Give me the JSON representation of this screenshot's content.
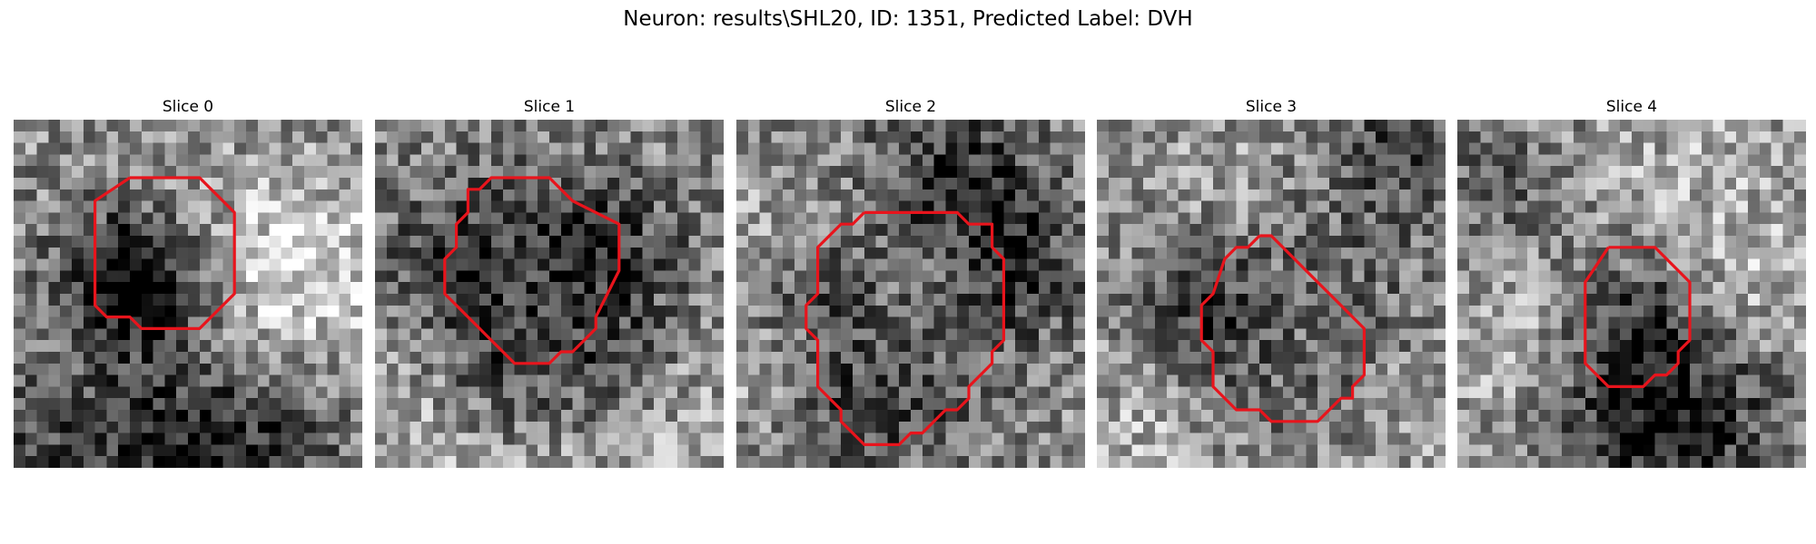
{
  "figure": {
    "title": "Neuron: results\\SHL20, ID: 1351, Predicted Label: DVH"
  },
  "colors": {
    "contour": "#e8141c",
    "gray_min": "#000000",
    "gray_max": "#ffffff"
  },
  "panels": [
    {
      "title": "Slice 0",
      "grid": 30,
      "contour_points": [
        [
          10,
          5
        ],
        [
          16,
          5
        ],
        [
          19,
          8
        ],
        [
          19,
          15
        ],
        [
          16,
          18
        ],
        [
          11,
          18
        ],
        [
          10,
          17
        ],
        [
          8,
          17
        ],
        [
          7,
          16
        ],
        [
          7,
          7
        ],
        [
          10,
          5
        ]
      ],
      "dark_blobs": [
        [
          8,
          13,
          4,
          1.4
        ],
        [
          12,
          14,
          4,
          1.2
        ],
        [
          14,
          29,
          7,
          1.0
        ],
        [
          19,
          27,
          7,
          1.0
        ],
        [
          2,
          27,
          5,
          0.7
        ]
      ],
      "light_blobs": [
        [
          22,
          12,
          6,
          1.0
        ],
        [
          28,
          12,
          4,
          0.6
        ],
        [
          21,
          20,
          6,
          0.7
        ]
      ],
      "seed": 11
    },
    {
      "title": "Slice 1",
      "grid": 30,
      "contour_points": [
        [
          11,
          5
        ],
        [
          15,
          5
        ],
        [
          17,
          7
        ],
        [
          19,
          8
        ],
        [
          21,
          9
        ],
        [
          21,
          13
        ],
        [
          20,
          15
        ],
        [
          19,
          17
        ],
        [
          19,
          18
        ],
        [
          18,
          19
        ],
        [
          17,
          20
        ],
        [
          16,
          20
        ],
        [
          15,
          21
        ],
        [
          12,
          21
        ],
        [
          10,
          19
        ],
        [
          9,
          18
        ],
        [
          8,
          17
        ],
        [
          7,
          16
        ],
        [
          6,
          15
        ],
        [
          6,
          12
        ],
        [
          7,
          11
        ],
        [
          7,
          9
        ],
        [
          8,
          8
        ],
        [
          8,
          6
        ],
        [
          9,
          6
        ],
        [
          10,
          5
        ],
        [
          11,
          5
        ]
      ],
      "dark_blobs": [
        [
          14,
          13,
          7,
          0.9
        ],
        [
          6,
          12,
          5,
          0.8
        ],
        [
          19,
          12,
          5,
          0.9
        ],
        [
          10,
          22,
          4,
          0.9
        ],
        [
          20,
          22,
          4,
          0.8
        ]
      ],
      "light_blobs": [
        [
          14,
          13,
          4,
          0.6
        ],
        [
          5,
          25,
          7,
          0.8
        ],
        [
          23,
          25,
          6,
          0.8
        ]
      ],
      "seed": 23
    },
    {
      "title": "Slice 2",
      "grid": 30,
      "contour_points": [
        [
          11,
          8
        ],
        [
          19,
          8
        ],
        [
          20,
          9
        ],
        [
          22,
          9
        ],
        [
          22,
          11
        ],
        [
          23,
          12
        ],
        [
          23,
          19
        ],
        [
          22,
          20
        ],
        [
          22,
          21
        ],
        [
          20,
          23
        ],
        [
          20,
          24
        ],
        [
          19,
          25
        ],
        [
          18,
          25
        ],
        [
          16,
          27
        ],
        [
          15,
          27
        ],
        [
          14,
          28
        ],
        [
          11,
          28
        ],
        [
          9,
          26
        ],
        [
          9,
          25
        ],
        [
          8,
          24
        ],
        [
          7,
          23
        ],
        [
          7,
          19
        ],
        [
          6,
          18
        ],
        [
          6,
          16
        ],
        [
          7,
          15
        ],
        [
          7,
          11
        ],
        [
          8,
          10
        ],
        [
          9,
          9
        ],
        [
          10,
          9
        ],
        [
          11,
          8
        ]
      ],
      "dark_blobs": [
        [
          19,
          5,
          6,
          1.3
        ],
        [
          6,
          14,
          4,
          1.0
        ],
        [
          24,
          13,
          4,
          1.0
        ],
        [
          15,
          22,
          6,
          1.0
        ],
        [
          8,
          24,
          4,
          0.8
        ]
      ],
      "light_blobs": [
        [
          15,
          16,
          6,
          0.6
        ],
        [
          4,
          22,
          4,
          0.8
        ],
        [
          3,
          9,
          4,
          0.6
        ]
      ],
      "seed": 37
    },
    {
      "title": "Slice 3",
      "grid": 30,
      "contour_points": [
        [
          14,
          10
        ],
        [
          15,
          10
        ],
        [
          16,
          11
        ],
        [
          17,
          12
        ],
        [
          19,
          14
        ],
        [
          20,
          15
        ],
        [
          21,
          16
        ],
        [
          22,
          17
        ],
        [
          23,
          18
        ],
        [
          23,
          22
        ],
        [
          22,
          23
        ],
        [
          22,
          24
        ],
        [
          21,
          24
        ],
        [
          20,
          25
        ],
        [
          19,
          26
        ],
        [
          15,
          26
        ],
        [
          14,
          25
        ],
        [
          12,
          25
        ],
        [
          11,
          24
        ],
        [
          10,
          23
        ],
        [
          10,
          20
        ],
        [
          9,
          19
        ],
        [
          9,
          16
        ],
        [
          10,
          15
        ],
        [
          11,
          12
        ],
        [
          12,
          11
        ],
        [
          13,
          11
        ],
        [
          14,
          10
        ]
      ],
      "dark_blobs": [
        [
          16,
          17,
          8,
          1.1
        ],
        [
          26,
          2,
          4,
          1.0
        ],
        [
          8,
          16,
          4,
          0.8
        ]
      ],
      "light_blobs": [
        [
          16,
          17,
          4,
          0.7
        ],
        [
          4,
          27,
          6,
          0.8
        ],
        [
          27,
          25,
          6,
          0.7
        ],
        [
          10,
          7,
          6,
          0.6
        ]
      ],
      "seed": 53
    },
    {
      "title": "Slice 4",
      "grid": 30,
      "contour_points": [
        [
          13,
          11
        ],
        [
          17,
          11
        ],
        [
          20,
          14
        ],
        [
          20,
          19
        ],
        [
          19,
          20
        ],
        [
          19,
          21
        ],
        [
          18,
          22
        ],
        [
          17,
          22
        ],
        [
          16,
          23
        ],
        [
          13,
          23
        ],
        [
          11,
          21
        ],
        [
          11,
          14
        ],
        [
          13,
          11
        ]
      ],
      "dark_blobs": [
        [
          15,
          16,
          4,
          0.9
        ],
        [
          15,
          24,
          5,
          1.1
        ],
        [
          20,
          27,
          6,
          1.0
        ],
        [
          3,
          6,
          4,
          0.6
        ]
      ],
      "light_blobs": [
        [
          20,
          6,
          6,
          0.7
        ],
        [
          4,
          18,
          5,
          0.6
        ],
        [
          27,
          14,
          4,
          0.6
        ]
      ],
      "seed": 71
    }
  ]
}
